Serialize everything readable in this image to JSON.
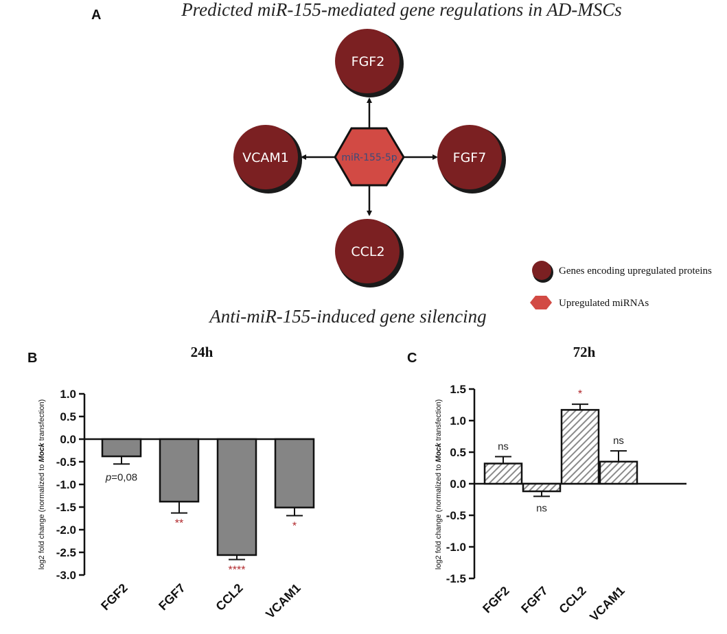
{
  "panel_a": {
    "letter": "A",
    "title": "Predicted miR-155-mediated gene regulations in AD-MSCs",
    "center": "miR-155-5p",
    "nodes": {
      "top": "FGF2",
      "left": "VCAM1",
      "right": "FGF7",
      "bottom": "CCL2"
    },
    "legend": {
      "genes": "Genes encoding upregulated proteins",
      "mirnas": "Upregulated miRNAs"
    },
    "colors": {
      "node": "#7b2022",
      "hex": "#d24a44"
    }
  },
  "section_title": "Anti-miR-155-induced gene silencing",
  "chart_data": [
    {
      "type": "bar",
      "panel": "B",
      "title": "24h",
      "ylabel_parts": [
        "log2 fold change (normalized to ",
        "Mock",
        " transfection)"
      ],
      "categories": [
        "FGF2",
        "FGF7",
        "CCL2",
        "VCAM1"
      ],
      "values": [
        -0.38,
        -1.38,
        -2.56,
        -1.51
      ],
      "errors": [
        0.17,
        0.25,
        0.1,
        0.18
      ],
      "annotations": [
        "p=0,08",
        "**",
        "****",
        "*"
      ],
      "ylim": [
        -3.0,
        1.0
      ],
      "ticks": [
        1.0,
        0.5,
        0.0,
        -0.5,
        -1.0,
        -1.5,
        -2.0,
        -2.5,
        -3.0
      ],
      "tick_labels": [
        "1.0",
        "0.5",
        "0.0",
        "-0.5",
        "-1.0",
        "-1.5",
        "-2.0",
        "-2.5",
        "-3.0"
      ],
      "bar_style": "solid-gray"
    },
    {
      "type": "bar",
      "panel": "C",
      "title": "72h",
      "ylabel_parts": [
        "log2 fold change (normalized to ",
        "Mock",
        " transfection)"
      ],
      "categories": [
        "FGF2",
        "FGF7",
        "CCL2",
        "VCAM1"
      ],
      "values": [
        0.32,
        -0.12,
        1.17,
        0.35
      ],
      "errors": [
        0.11,
        0.08,
        0.09,
        0.17
      ],
      "annotations": [
        "ns",
        "ns",
        "*",
        "ns"
      ],
      "ylim": [
        -1.5,
        1.5
      ],
      "ticks": [
        1.5,
        1.0,
        0.5,
        0.0,
        -0.5,
        -1.0,
        -1.5
      ],
      "tick_labels": [
        "1.5",
        "1.0",
        "0.5",
        "0.0",
        "-0.5",
        "-1.0",
        "-1.5"
      ],
      "bar_style": "hatched"
    }
  ]
}
